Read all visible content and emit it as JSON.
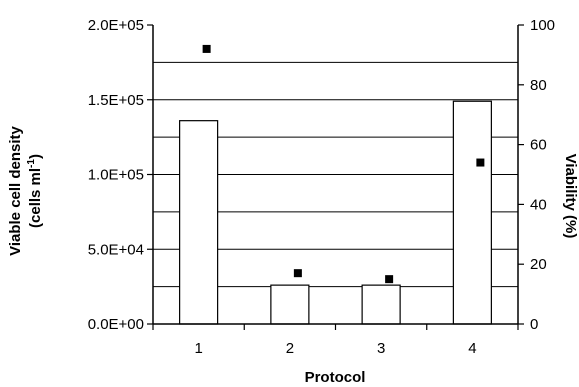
{
  "chart_data": {
    "type": "bar",
    "categories": [
      "1",
      "2",
      "3",
      "4"
    ],
    "series": [
      {
        "name": "",
        "axis": "left",
        "kind": "bar",
        "values": [
          136000,
          26000,
          26000,
          149000
        ]
      },
      {
        "name": "",
        "axis": "right",
        "kind": "scatter",
        "values": [
          92,
          17,
          15,
          54
        ]
      }
    ],
    "xlabel": "Protocol",
    "ylabel_line1": "Viable cell density",
    "ylabel_line2_main": "(cells ml",
    "ylabel_line2_sup": "-1",
    "ylabel_line2_end": ")",
    "y2label": "Viability (%)",
    "ylim": [
      0,
      200000
    ],
    "y2lim": [
      0,
      100
    ],
    "yticks": [
      "0.0E+00",
      "5.0E+04",
      "1.0E+05",
      "1.5E+05",
      "2.0E+05"
    ],
    "y2ticks": [
      "0",
      "20",
      "40",
      "60",
      "80",
      "100"
    ],
    "grid_values": [
      25000,
      50000,
      75000,
      100000,
      125000,
      150000,
      175000
    ],
    "grid": true,
    "colors": {
      "bar_fill": "#ffffff",
      "bar_stroke": "#000000",
      "marker": "#000000",
      "grid": "#000000"
    }
  }
}
